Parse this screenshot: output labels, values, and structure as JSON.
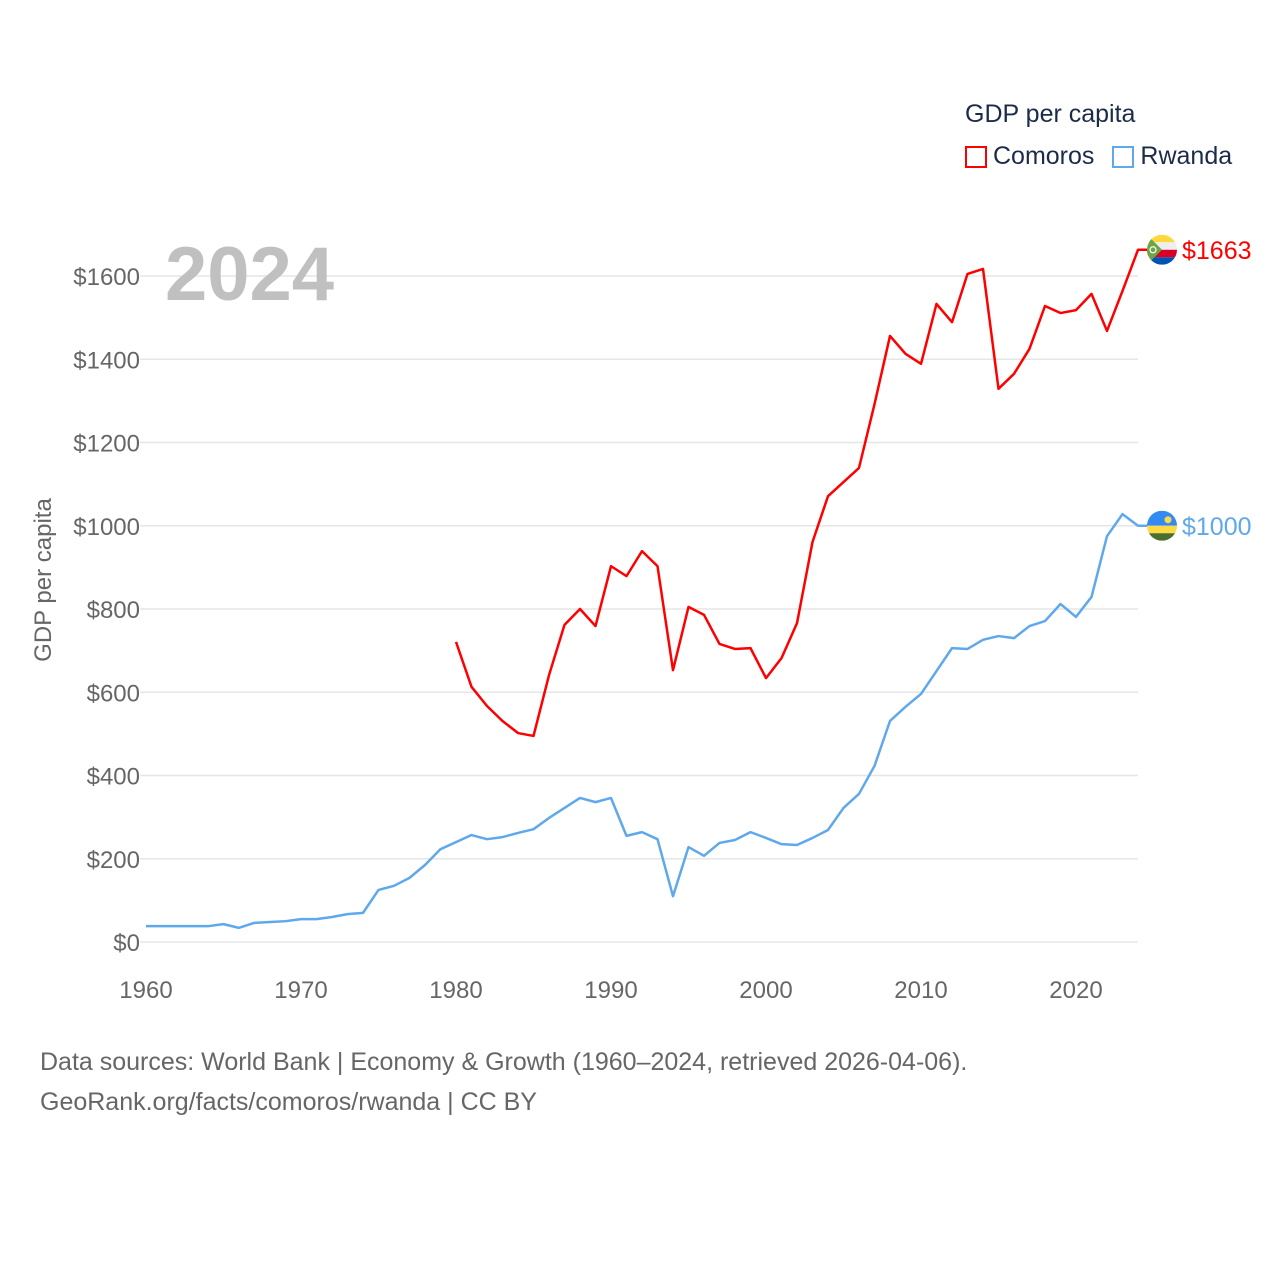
{
  "chart_data": {
    "type": "line",
    "year_label": "2024",
    "ylabel": "GDP per capita",
    "xlabel": "",
    "xlim": [
      1960,
      2024
    ],
    "ylim": [
      0,
      1700
    ],
    "x_ticks": [
      "1960",
      "1970",
      "1980",
      "1990",
      "2000",
      "2010",
      "2020"
    ],
    "x_tick_values": [
      1960,
      1970,
      1980,
      1990,
      2000,
      2010,
      2020
    ],
    "y_ticks": [
      "$0",
      "$200",
      "$400",
      "$600",
      "$800",
      "$1000",
      "$1200",
      "$1400",
      "$1600"
    ],
    "y_tick_values": [
      0,
      200,
      400,
      600,
      800,
      1000,
      1200,
      1400,
      1600
    ],
    "grid": true,
    "legend": {
      "title": "GDP per capita",
      "placement": "top-right"
    },
    "series": [
      {
        "name": "Comoros",
        "color": "#ff0000",
        "end_label": "$1663",
        "start_year": 1980,
        "values": [
          721,
          613,
          567,
          531,
          502,
          495,
          641,
          762,
          800,
          759,
          903,
          879,
          939,
          903,
          653,
          805,
          786,
          716,
          704,
          706,
          634,
          682,
          766,
          961,
          1071,
          1105,
          1139,
          1292,
          1456,
          1413,
          1389,
          1533,
          1489,
          1605,
          1617,
          1329,
          1365,
          1425,
          1528,
          1511,
          1518,
          1557,
          1468,
          1564,
          1663
        ]
      },
      {
        "name": "Rwanda",
        "color": "#5fa8ec",
        "end_label": "$1000",
        "start_year": 1960,
        "values": [
          38,
          38,
          38,
          38,
          38,
          43,
          34,
          46,
          48,
          50,
          55,
          55,
          60,
          67,
          70,
          125,
          135,
          154,
          185,
          223,
          240,
          257,
          247,
          252,
          262,
          271,
          298,
          322,
          346,
          336,
          346,
          255,
          264,
          247,
          110,
          228,
          207,
          238,
          245,
          264,
          250,
          235,
          233,
          250,
          269,
          322,
          356,
          423,
          531,
          565,
          596,
          651,
          706,
          704,
          726,
          735,
          730,
          759,
          771,
          812,
          781,
          829,
          975,
          1028,
          1000
        ]
      }
    ]
  },
  "footer": {
    "line1": "Data sources: World Bank | Economy & Growth (1960–2024, retrieved 2026-04-06).",
    "line2": "GeoRank.org/facts/comoros/rwanda | CC BY"
  }
}
